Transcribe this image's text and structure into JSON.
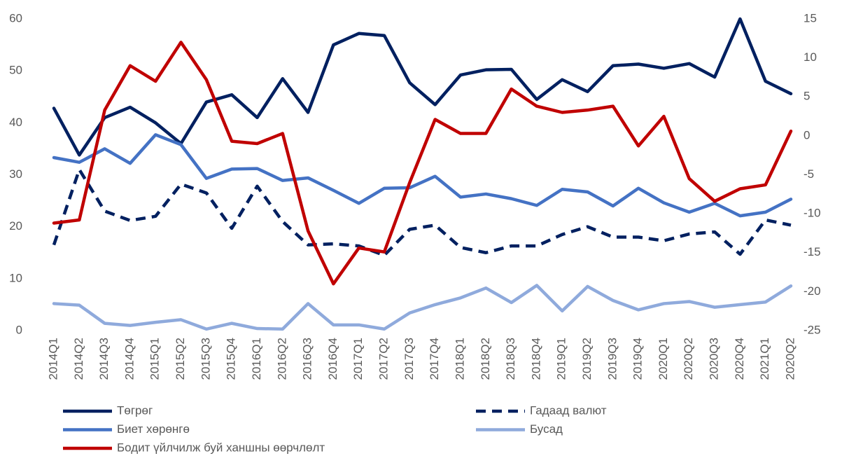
{
  "chart_data": {
    "type": "line",
    "categories": [
      "2014Q1",
      "2014Q2",
      "2014Q3",
      "2014Q4",
      "2015Q1",
      "2015Q2",
      "2015Q3",
      "2015Q4",
      "2016Q1",
      "2016Q2",
      "2016Q3",
      "2016Q4",
      "2017Q1",
      "2017Q2",
      "2017Q3",
      "2017Q4",
      "2018Q1",
      "2018Q2",
      "2018Q3",
      "2018Q4",
      "2019Q1",
      "2019Q2",
      "2019Q3",
      "2019Q4",
      "2020Q1",
      "2020Q2",
      "2020Q3",
      "2020Q4",
      "2021Q1",
      "2020Q2"
    ],
    "series": [
      {
        "name": "Төгрөг",
        "color": "#002060",
        "values": [
          42.8,
          33.8,
          41,
          43,
          40,
          36,
          44,
          45.4,
          41,
          48.5,
          42,
          55,
          57.2,
          56.8,
          47.7,
          43.5,
          49.2,
          50.2,
          50.3,
          44.5,
          48.3,
          46,
          51,
          51.3,
          50.5,
          51.4,
          48.8,
          60,
          48,
          45.6
        ]
      },
      {
        "name": "Гадаад валют",
        "color": "#002060",
        "line_style": "dashed",
        "values": [
          16.5,
          31,
          23,
          21.2,
          22,
          28.2,
          26.5,
          19.7,
          27.8,
          21,
          16.5,
          16.7,
          16.3,
          14.5,
          19.5,
          20.3,
          16,
          15,
          16.3,
          16.3,
          18.5,
          20,
          18,
          18,
          17.3,
          18.6,
          19,
          14.7,
          21.3,
          20.3
        ]
      },
      {
        "name": "Биет хөрөнгө",
        "color": "#4472c4",
        "values": [
          33.3,
          32.4,
          35,
          32.2,
          37.7,
          35.8,
          29.3,
          31.1,
          31.2,
          28.9,
          29.4,
          27,
          24.5,
          27.4,
          27.5,
          29.7,
          25.7,
          26.3,
          25.4,
          24.1,
          27.2,
          26.7,
          24,
          27.4,
          24.6,
          22.8,
          24.5,
          22.1,
          22.8,
          25.3
        ]
      },
      {
        "name": "Бусад",
        "color": "#8faadc",
        "values": [
          5.2,
          4.9,
          1.4,
          1,
          1.6,
          2.1,
          0.3,
          1.4,
          0.4,
          0.3,
          5.2,
          1.1,
          1.1,
          0.3,
          3.4,
          5,
          6.3,
          8.2,
          5.4,
          8.7,
          3.8,
          8.5,
          5.8,
          4,
          5.2,
          5.6,
          4.5,
          5,
          5.5,
          8.6
        ]
      },
      {
        "name": "Бодит үйлчилж буй ханшны өөрчлөлт",
        "color": "#c00000",
        "axis": "y2",
        "values": [
          -11.2,
          -10.8,
          3.3,
          9,
          7,
          12,
          7.2,
          -0.7,
          -1,
          0.3,
          -12.2,
          -19,
          -14.4,
          -14.9,
          -6,
          2.1,
          0.3,
          0.3,
          6,
          3.8,
          3,
          3.3,
          3.8,
          -1.3,
          2.5,
          -5.5,
          -8.4,
          -6.8,
          -6.3,
          0.6
        ]
      }
    ],
    "ylim": [
      0,
      60
    ],
    "yticks": [
      0,
      10,
      20,
      30,
      40,
      50,
      60
    ],
    "y2lim": [
      -25,
      15
    ],
    "y2ticks": [
      -25,
      -20,
      -15,
      -10,
      -5,
      0,
      5,
      10,
      15
    ],
    "grid": false,
    "legend": "bottom"
  }
}
